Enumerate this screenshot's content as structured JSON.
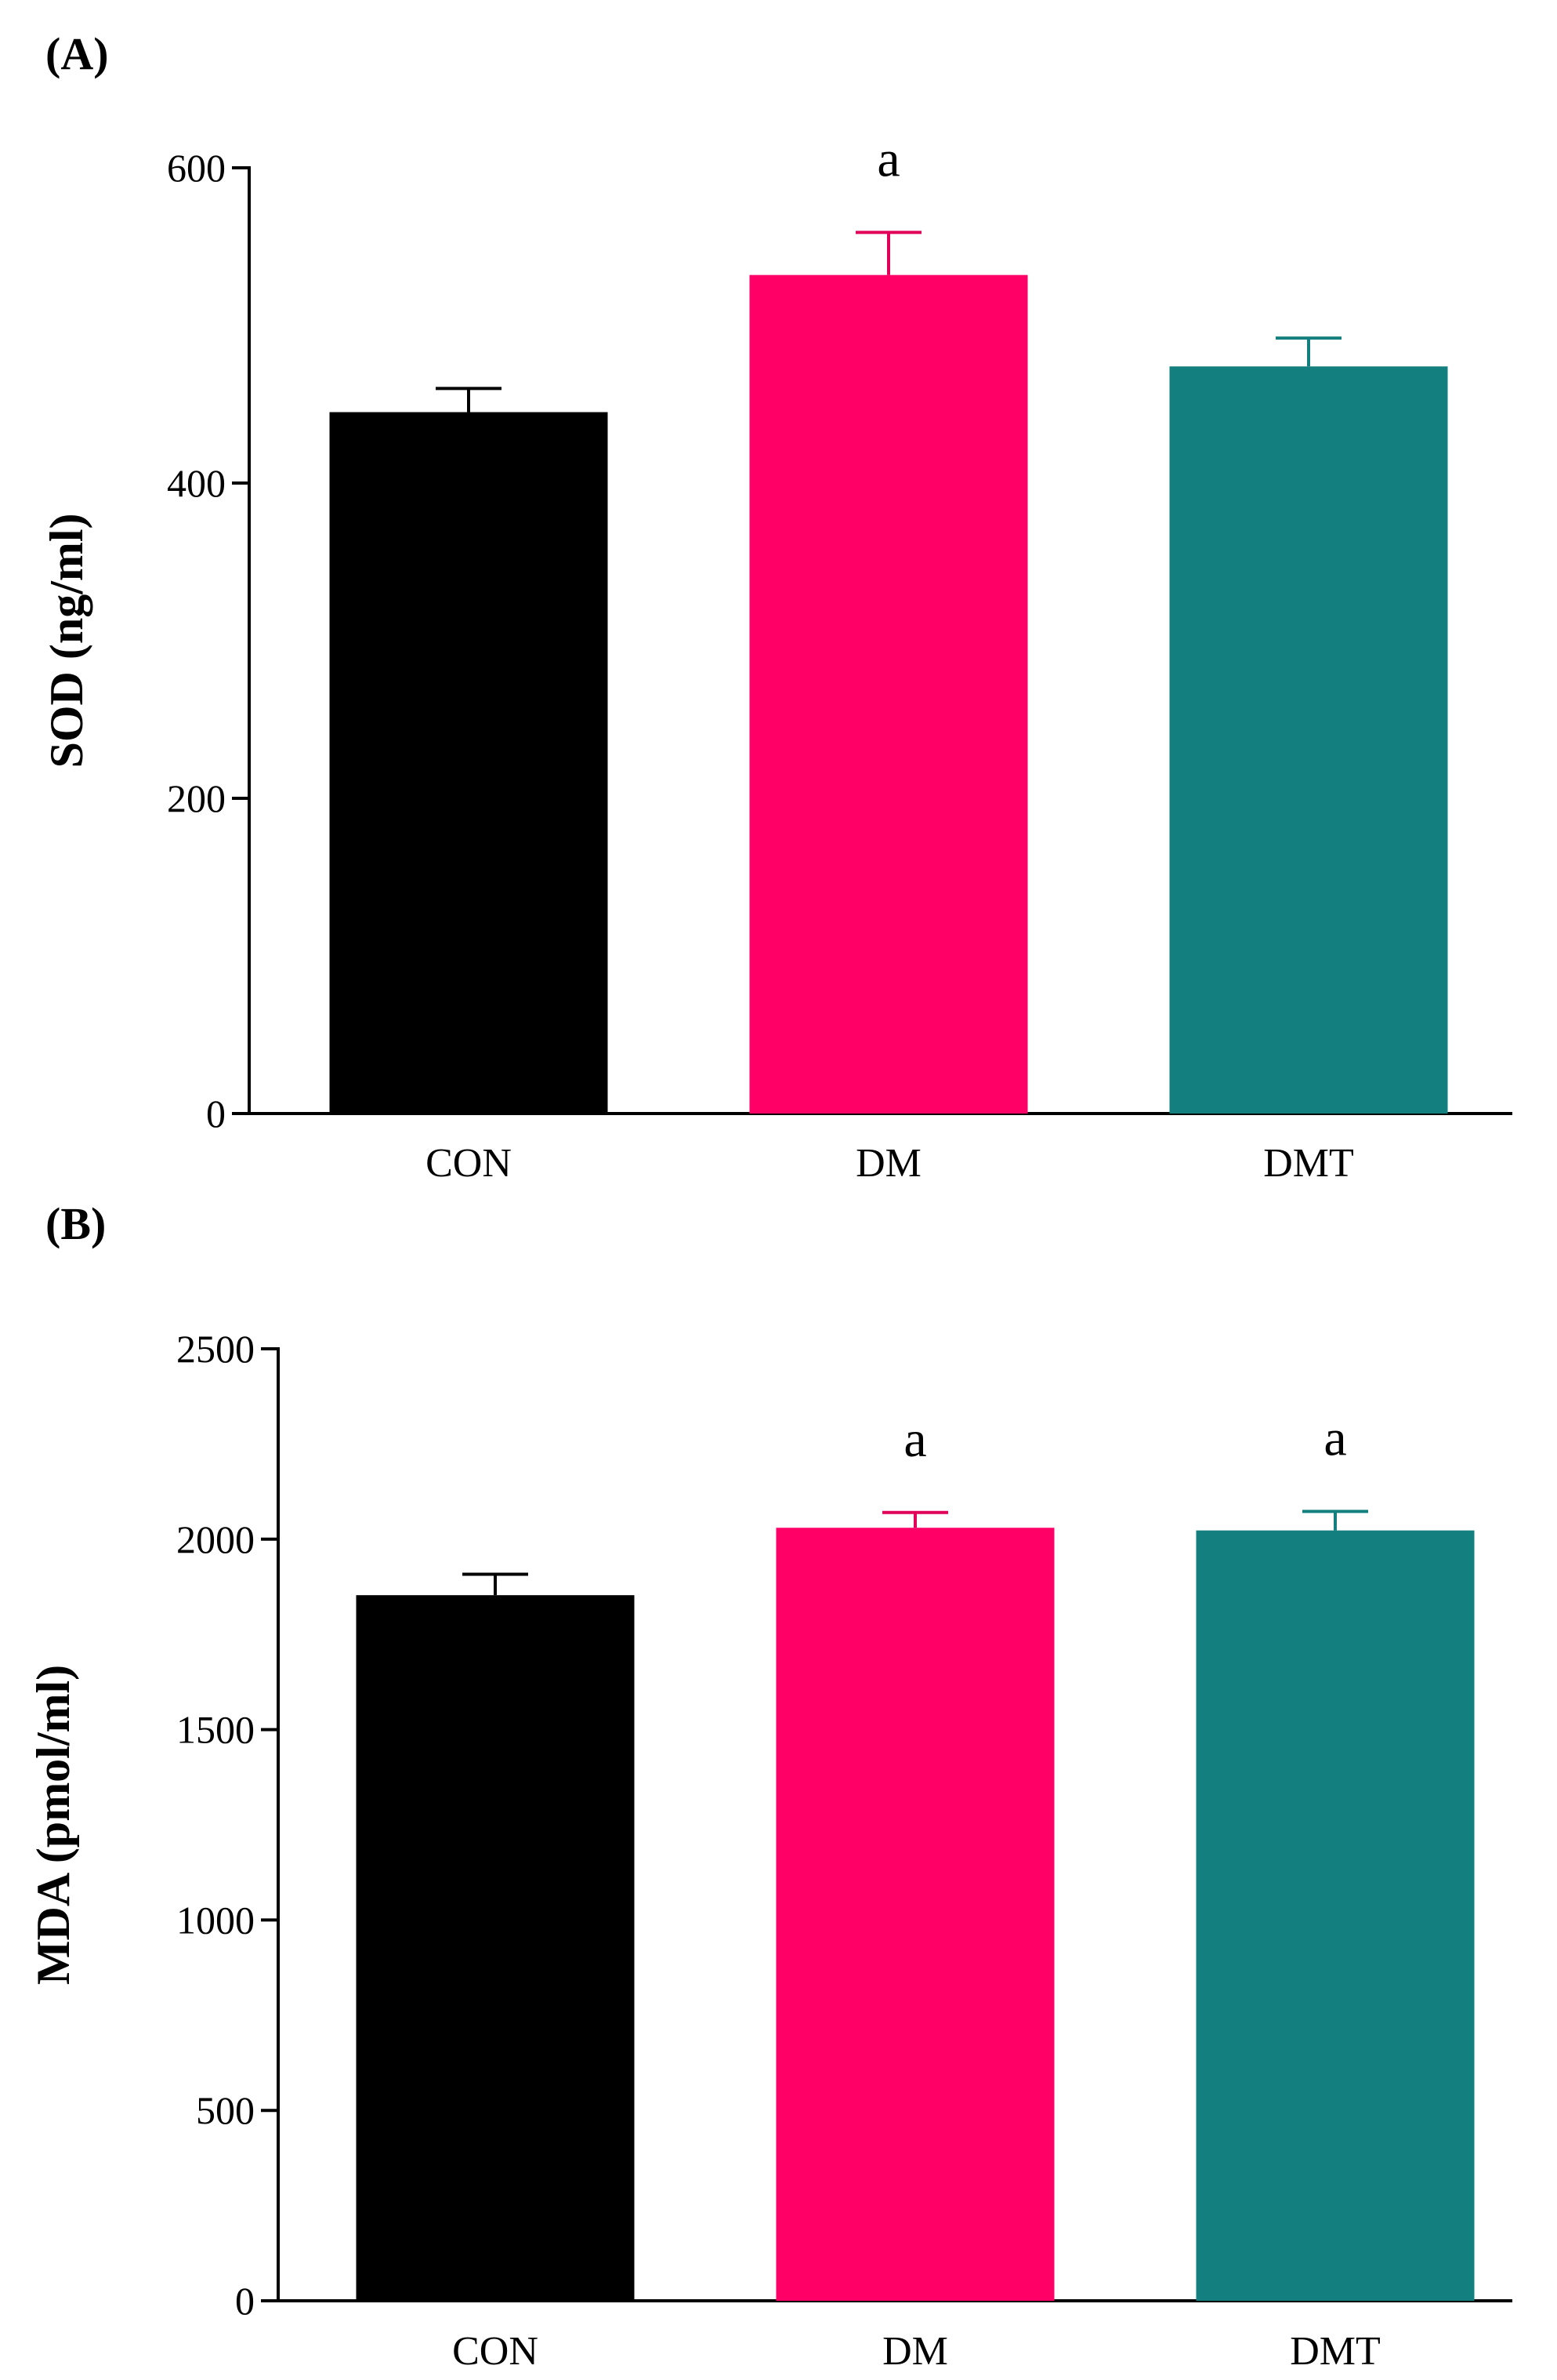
{
  "chart_data": [
    {
      "panel_label": "(A)",
      "type": "bar",
      "ylabel": "SOD (ng/ml)",
      "xlabel": "",
      "ylim": [
        0,
        600
      ],
      "yticks": [
        0,
        200,
        400,
        600
      ],
      "ytick_labels": [
        "0",
        "200",
        "400",
        "600"
      ],
      "categories": [
        "CON",
        "DM",
        "DMT"
      ],
      "values": [
        445,
        532,
        474
      ],
      "errors": [
        15,
        27,
        18
      ],
      "colors": [
        "#000000",
        "#ff0066",
        "#137f7f"
      ],
      "significance": [
        "",
        "a",
        ""
      ]
    },
    {
      "panel_label": "(B)",
      "type": "bar",
      "ylabel": "MDA (pmol/ml)",
      "xlabel": "",
      "ylim": [
        0,
        2500
      ],
      "yticks": [
        0,
        500,
        1000,
        1500,
        2000,
        2500
      ],
      "ytick_labels": [
        "0",
        "500",
        "1000",
        "1500",
        "2000",
        "2500"
      ],
      "categories": [
        "CON",
        "DM",
        "DMT"
      ],
      "values": [
        1853,
        2030,
        2023
      ],
      "errors": [
        55,
        40,
        50
      ],
      "colors": [
        "#000000",
        "#ff0066",
        "#137f7f"
      ],
      "significance": [
        "",
        "a",
        "a"
      ]
    }
  ]
}
